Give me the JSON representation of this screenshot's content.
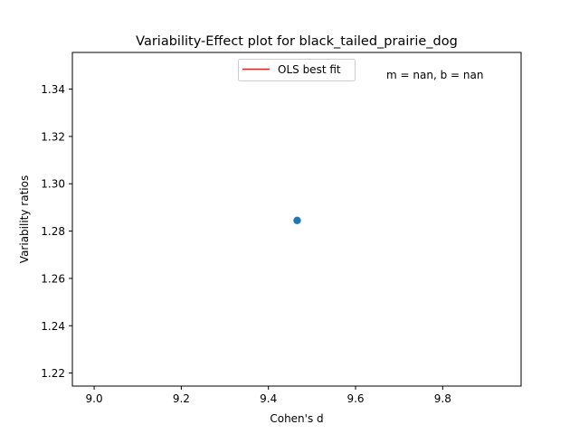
{
  "chart_data": {
    "type": "scatter",
    "title": "Variability-Effect plot for black_tailed_prairie_dog",
    "xlabel": "Cohen's d",
    "ylabel": "Variability ratios",
    "xlim": [
      8.95,
      9.98
    ],
    "ylim": [
      1.2145,
      1.3555
    ],
    "xticks": [
      9.0,
      9.2,
      9.4,
      9.6,
      9.8
    ],
    "xtick_labels": [
      "9.0",
      "9.2",
      "9.4",
      "9.6",
      "9.8"
    ],
    "yticks": [
      1.22,
      1.24,
      1.26,
      1.28,
      1.3,
      1.32,
      1.34
    ],
    "ytick_labels": [
      "1.22",
      "1.24",
      "1.26",
      "1.28",
      "1.30",
      "1.32",
      "1.34"
    ],
    "series": [
      {
        "name": "",
        "color": "#1f77b4",
        "points": [
          {
            "x": 9.466,
            "y": 1.2845
          }
        ]
      }
    ],
    "fit_line": {
      "name": "OLS best fit",
      "color": "#d62728"
    },
    "legend": {
      "entries": [
        "OLS best fit"
      ],
      "placement": "upper-center"
    },
    "annotation": "m = nan, b = nan",
    "grid": false
  }
}
